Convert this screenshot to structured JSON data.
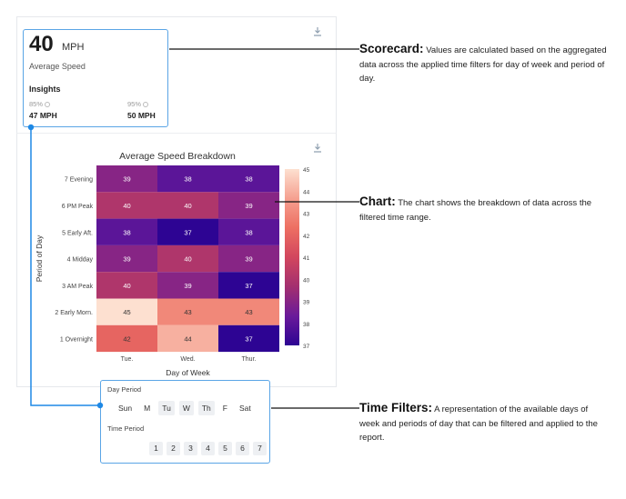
{
  "scorecard": {
    "value": "40",
    "unit": "MPH",
    "label": "Average Speed",
    "insights_title": "Insights",
    "p85_label": "85%",
    "p85_value": "47 MPH",
    "p95_label": "95%",
    "p95_value": "50 MPH"
  },
  "chart_data": {
    "type": "heatmap",
    "title": "Average Speed Breakdown",
    "xlabel": "Day of Week",
    "ylabel": "Period of Day",
    "x_categories": [
      "Tue.",
      "Wed.",
      "Thur."
    ],
    "y_categories": [
      "7 Evening",
      "6 PM Peak",
      "5 Early Aft.",
      "4 Midday",
      "3 AM Peak",
      "2 Early Morn.",
      "1 Overnight"
    ],
    "values": [
      [
        39,
        38,
        38
      ],
      [
        40,
        40,
        39
      ],
      [
        38,
        37,
        38
      ],
      [
        39,
        40,
        39
      ],
      [
        40,
        39,
        37
      ],
      [
        45,
        43,
        43
      ],
      [
        42,
        44,
        37
      ]
    ],
    "colorbar_ticks": [
      "45",
      "44",
      "43",
      "42",
      "41",
      "40",
      "39",
      "38",
      "37"
    ],
    "color_range": [
      37,
      45
    ],
    "colorscale": [
      "#2d0493",
      "#6a1a9a",
      "#a3306f",
      "#d2465e",
      "#ed6f62",
      "#f5a090",
      "#fde0d0"
    ]
  },
  "filters": {
    "day_period_label": "Day Period",
    "days": [
      {
        "label": "Sun",
        "selected": false
      },
      {
        "label": "M",
        "selected": false
      },
      {
        "label": "Tu",
        "selected": true
      },
      {
        "label": "W",
        "selected": true
      },
      {
        "label": "Th",
        "selected": true
      },
      {
        "label": "F",
        "selected": false
      },
      {
        "label": "Sat",
        "selected": false
      }
    ],
    "time_period_label": "Time Period",
    "periods": [
      "1",
      "2",
      "3",
      "4",
      "5",
      "6",
      "7"
    ]
  },
  "annotations": {
    "scorecard": {
      "title": "Scorecard:",
      "text": "Values are calculated based on the aggregated data across the applied time filters for day of week and period of day."
    },
    "chart": {
      "title": "Chart:",
      "text": "The chart shows the breakdown of data across the filtered time range."
    },
    "filters": {
      "title": "Time Filters:",
      "text": "A representation of the available days of week and periods of day that can be filtered and applied to the report."
    }
  },
  "colors": {
    "highlight_border": "#5aa5e6",
    "connector": "#1e88e5",
    "chip_bg": "#eef0f3"
  },
  "icons": [
    "download-icon",
    "info-icon"
  ]
}
